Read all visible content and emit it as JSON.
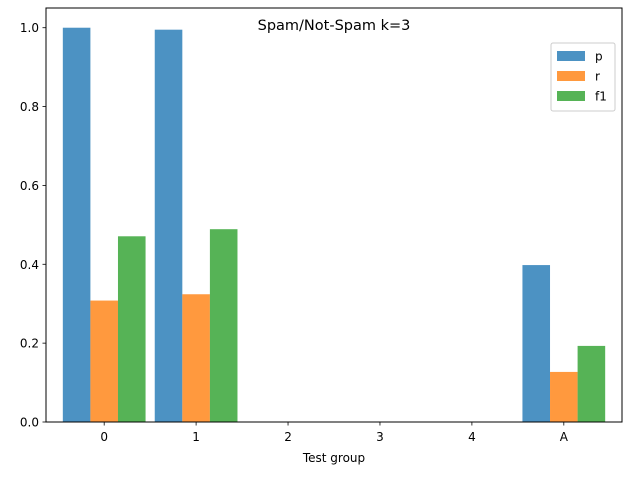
{
  "chart_data": {
    "type": "bar",
    "title": "Spam/Not-Spam k=3",
    "xlabel": "Test group",
    "ylabel": "",
    "categories": [
      "0",
      "1",
      "2",
      "3",
      "4",
      "A"
    ],
    "series": [
      {
        "name": "p",
        "color": "#1f77b4",
        "values": [
          1.0,
          0.995,
          0,
          0,
          0,
          0.398
        ]
      },
      {
        "name": "r",
        "color": "#ff7f0e",
        "values": [
          0.308,
          0.324,
          0,
          0,
          0,
          0.127
        ]
      },
      {
        "name": "f1",
        "color": "#2ca02c",
        "values": [
          0.471,
          0.489,
          0,
          0,
          0,
          0.193
        ]
      }
    ],
    "ylim": [
      0,
      1.05
    ],
    "yticks": [
      "0.0",
      "0.2",
      "0.4",
      "0.6",
      "0.8",
      "1.0"
    ],
    "grid": false,
    "legend_position": "top-right",
    "bar_opacity": 0.8
  }
}
